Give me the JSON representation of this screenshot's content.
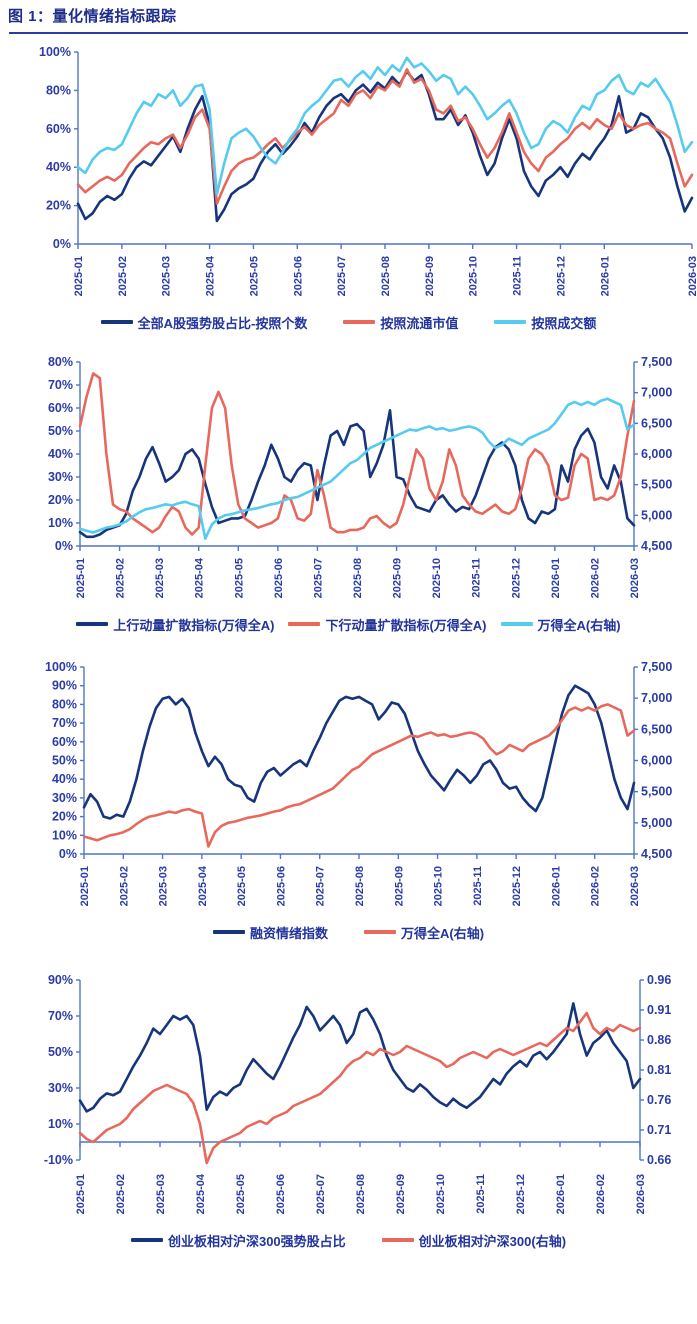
{
  "title": "图 1：量化情绪指标跟踪",
  "colors": {
    "navy": "#17357C",
    "red": "#E8685C",
    "sky": "#55CBEF",
    "axis": "#4F74C8",
    "tick_text": "#2B3CA8",
    "title_text": "#1F2E8C",
    "rule": "#2B3FA0"
  },
  "chart_data": [
    {
      "type": "line",
      "name": "全部A股强势股占比",
      "x_labels": [
        "2025-01",
        "2025-02",
        "2025-03",
        "2025-04",
        "2025-05",
        "2025-06",
        "2025-07",
        "2025-08",
        "2025-09",
        "2025-10",
        "2025-11",
        "2025-12",
        "2026-01",
        "2026-03"
      ],
      "left_axis": {
        "min": 0,
        "max": 100,
        "tick_labels": [
          "100%",
          "80%",
          "60%",
          "40%",
          "20%",
          "0%"
        ]
      },
      "right_axis": null,
      "x_axis_at_value": null,
      "series": [
        {
          "name": "全部A股强势股占比-按照个数",
          "color_key": "navy",
          "axis": "left",
          "values": [
            21,
            13,
            16,
            22,
            25,
            23,
            26,
            34,
            40,
            43,
            41,
            46,
            51,
            56,
            48,
            60,
            70,
            77,
            62,
            12,
            18,
            26,
            29,
            31,
            34,
            42,
            48,
            52,
            47,
            51,
            56,
            63,
            58,
            66,
            72,
            76,
            78,
            74,
            80,
            83,
            79,
            84,
            81,
            87,
            83,
            90,
            85,
            88,
            78,
            65,
            65,
            70,
            62,
            67,
            58,
            46,
            36,
            42,
            55,
            65,
            55,
            38,
            30,
            25,
            33,
            36,
            40,
            35,
            42,
            47,
            44,
            50,
            55,
            62,
            77,
            58,
            60,
            68,
            66,
            60,
            55,
            45,
            30,
            17,
            24
          ]
        },
        {
          "name": "按照流通市值",
          "color_key": "red",
          "axis": "left",
          "values": [
            31,
            27,
            30,
            33,
            35,
            33,
            36,
            42,
            46,
            50,
            53,
            52,
            55,
            57,
            50,
            57,
            66,
            70,
            60,
            21,
            30,
            38,
            42,
            44,
            45,
            48,
            52,
            55,
            50,
            54,
            58,
            61,
            57,
            62,
            65,
            68,
            75,
            72,
            78,
            80,
            76,
            82,
            80,
            85,
            82,
            91,
            84,
            86,
            80,
            70,
            68,
            72,
            64,
            66,
            60,
            52,
            45,
            50,
            58,
            68,
            58,
            48,
            42,
            38,
            45,
            48,
            52,
            55,
            60,
            63,
            60,
            65,
            62,
            60,
            68,
            62,
            60,
            62,
            63,
            60,
            58,
            55,
            42,
            30,
            36
          ]
        },
        {
          "name": "按照成交额",
          "color_key": "sky",
          "axis": "left",
          "values": [
            40,
            37,
            44,
            48,
            50,
            49,
            52,
            60,
            68,
            74,
            72,
            78,
            76,
            80,
            72,
            76,
            82,
            83,
            70,
            26,
            42,
            55,
            58,
            60,
            56,
            50,
            45,
            42,
            48,
            55,
            60,
            68,
            72,
            75,
            80,
            85,
            86,
            82,
            87,
            90,
            86,
            92,
            88,
            93,
            90,
            97,
            92,
            94,
            90,
            85,
            88,
            86,
            78,
            82,
            78,
            72,
            65,
            68,
            72,
            75,
            68,
            58,
            50,
            52,
            60,
            64,
            62,
            58,
            66,
            72,
            70,
            78,
            80,
            85,
            88,
            80,
            78,
            84,
            82,
            86,
            80,
            74,
            62,
            48,
            53
          ]
        }
      ]
    },
    {
      "type": "line",
      "name": "动量扩散指标",
      "x_labels": [
        "2025-01",
        "2025-02",
        "2025-03",
        "2025-04",
        "2025-05",
        "2025-06",
        "2025-07",
        "2025-08",
        "2025-09",
        "2025-10",
        "2025-11",
        "2025-12",
        "2026-01",
        "2026-02",
        "2026-03"
      ],
      "left_axis": {
        "min": 0,
        "max": 80,
        "tick_labels": [
          "80%",
          "70%",
          "60%",
          "50%",
          "40%",
          "30%",
          "20%",
          "10%",
          "0%"
        ]
      },
      "right_axis": {
        "min": 4500,
        "max": 7500,
        "tick_labels": [
          "7,500",
          "7,000",
          "6,500",
          "6,000",
          "5,500",
          "5,000",
          "4,500"
        ]
      },
      "x_axis_at_value": null,
      "series": [
        {
          "name": "上行动量扩散指标(万得全A)",
          "color_key": "navy",
          "axis": "left",
          "values": [
            6,
            4,
            4,
            5,
            7,
            8,
            9,
            14,
            24,
            30,
            38,
            43,
            36,
            28,
            30,
            33,
            40,
            42,
            38,
            27,
            17,
            10,
            11,
            12,
            12,
            13,
            20,
            28,
            35,
            44,
            38,
            30,
            28,
            33,
            36,
            35,
            20,
            35,
            48,
            50,
            44,
            52,
            53,
            50,
            30,
            36,
            44,
            59,
            30,
            29,
            22,
            17,
            16,
            15,
            20,
            22,
            18,
            15,
            17,
            16,
            22,
            30,
            38,
            43,
            45,
            42,
            35,
            20,
            12,
            10,
            15,
            14,
            16,
            35,
            28,
            42,
            48,
            51,
            45,
            30,
            25,
            35,
            28,
            12,
            9
          ]
        },
        {
          "name": "下行动量扩散指标(万得全A)",
          "color_key": "red",
          "axis": "left",
          "values": [
            52,
            65,
            75,
            73,
            40,
            18,
            16,
            15,
            12,
            10,
            8,
            6,
            8,
            13,
            17,
            15,
            8,
            5,
            8,
            35,
            60,
            67,
            60,
            35,
            18,
            12,
            10,
            8,
            9,
            10,
            12,
            22,
            20,
            12,
            11,
            14,
            33,
            22,
            8,
            6,
            6,
            7,
            7,
            8,
            12,
            13,
            10,
            8,
            10,
            18,
            30,
            42,
            38,
            25,
            20,
            28,
            42,
            35,
            22,
            18,
            15,
            14,
            16,
            18,
            15,
            14,
            16,
            25,
            38,
            42,
            40,
            35,
            22,
            20,
            21,
            35,
            40,
            38,
            20,
            21,
            20,
            22,
            30,
            48,
            63
          ]
        },
        {
          "name": "万得全A(右轴)",
          "color_key": "sky",
          "axis": "right",
          "values": [
            4780,
            4750,
            4720,
            4760,
            4800,
            4820,
            4850,
            4900,
            4980,
            5050,
            5100,
            5120,
            5150,
            5180,
            5160,
            5200,
            5220,
            5180,
            5150,
            4620,
            4850,
            4950,
            5000,
            5020,
            5050,
            5080,
            5100,
            5120,
            5150,
            5180,
            5200,
            5250,
            5280,
            5300,
            5350,
            5400,
            5450,
            5500,
            5550,
            5650,
            5750,
            5850,
            5900,
            6000,
            6100,
            6150,
            6200,
            6250,
            6300,
            6350,
            6400,
            6380,
            6420,
            6450,
            6400,
            6420,
            6380,
            6400,
            6430,
            6450,
            6420,
            6350,
            6200,
            6100,
            6150,
            6250,
            6200,
            6150,
            6250,
            6300,
            6350,
            6400,
            6500,
            6650,
            6800,
            6850,
            6800,
            6850,
            6800,
            6870,
            6900,
            6850,
            6800,
            6400,
            6480
          ]
        }
      ]
    },
    {
      "type": "line",
      "name": "融资情绪指数",
      "x_labels": [
        "2025-01",
        "2025-02",
        "2025-03",
        "2025-04",
        "2025-05",
        "2025-06",
        "2025-07",
        "2025-08",
        "2025-09",
        "2025-10",
        "2025-11",
        "2025-12",
        "2026-01",
        "2026-02",
        "2026-03"
      ],
      "left_axis": {
        "min": 0,
        "max": 100,
        "tick_labels": [
          "100%",
          "90%",
          "80%",
          "70%",
          "60%",
          "50%",
          "40%",
          "30%",
          "20%",
          "10%",
          "0%"
        ]
      },
      "right_axis": {
        "min": 4500,
        "max": 7500,
        "tick_labels": [
          "7,500",
          "7,000",
          "6,500",
          "6,000",
          "5,500",
          "5,000",
          "4,500"
        ]
      },
      "x_axis_at_value": null,
      "series": [
        {
          "name": "融资情绪指数",
          "color_key": "navy",
          "axis": "left",
          "values": [
            25,
            32,
            28,
            20,
            19,
            21,
            20,
            28,
            40,
            55,
            68,
            78,
            83,
            84,
            80,
            83,
            78,
            65,
            55,
            47,
            52,
            48,
            40,
            37,
            36,
            30,
            28,
            38,
            44,
            46,
            42,
            45,
            48,
            50,
            47,
            55,
            62,
            70,
            76,
            82,
            84,
            83,
            84,
            82,
            80,
            72,
            76,
            81,
            80,
            75,
            65,
            55,
            48,
            42,
            38,
            34,
            40,
            45,
            42,
            38,
            42,
            48,
            50,
            45,
            38,
            35,
            36,
            30,
            26,
            23,
            30,
            45,
            60,
            75,
            85,
            90,
            88,
            86,
            80,
            70,
            55,
            40,
            30,
            24,
            38
          ]
        },
        {
          "name": "万得全A(右轴)",
          "color_key": "red",
          "axis": "right",
          "values": [
            4780,
            4750,
            4720,
            4760,
            4800,
            4820,
            4850,
            4900,
            4980,
            5050,
            5100,
            5120,
            5150,
            5180,
            5160,
            5200,
            5220,
            5180,
            5150,
            4620,
            4850,
            4950,
            5000,
            5020,
            5050,
            5080,
            5100,
            5120,
            5150,
            5180,
            5200,
            5250,
            5280,
            5300,
            5350,
            5400,
            5450,
            5500,
            5550,
            5650,
            5750,
            5850,
            5900,
            6000,
            6100,
            6150,
            6200,
            6250,
            6300,
            6350,
            6400,
            6380,
            6420,
            6450,
            6400,
            6420,
            6380,
            6400,
            6430,
            6450,
            6420,
            6350,
            6200,
            6100,
            6150,
            6250,
            6200,
            6150,
            6250,
            6300,
            6350,
            6400,
            6500,
            6650,
            6800,
            6850,
            6800,
            6850,
            6800,
            6870,
            6900,
            6850,
            6800,
            6400,
            6480
          ]
        }
      ]
    },
    {
      "type": "line",
      "name": "创业板相对沪深300",
      "x_labels": [
        "2025-01",
        "2025-02",
        "2025-03",
        "2025-04",
        "2025-05",
        "2025-06",
        "2025-07",
        "2025-08",
        "2025-09",
        "2025-10",
        "2025-11",
        "2025-12",
        "2026-01",
        "2026-02",
        "2026-03"
      ],
      "left_axis": {
        "min": -10,
        "max": 90,
        "tick_labels": [
          "90%",
          "70%",
          "50%",
          "30%",
          "10%",
          "-10%"
        ]
      },
      "right_axis": {
        "min": 0.66,
        "max": 0.96,
        "tick_labels": [
          "0.96",
          "0.91",
          "0.86",
          "0.81",
          "0.76",
          "0.71",
          "0.66"
        ]
      },
      "x_axis_at_value": 0,
      "series": [
        {
          "name": "创业板相对沪深300强势股占比",
          "color_key": "navy",
          "axis": "left",
          "values": [
            23,
            17,
            19,
            24,
            27,
            26,
            28,
            35,
            42,
            48,
            55,
            63,
            60,
            65,
            70,
            68,
            70,
            65,
            48,
            18,
            25,
            28,
            26,
            30,
            32,
            40,
            46,
            42,
            38,
            35,
            42,
            50,
            58,
            65,
            75,
            70,
            62,
            66,
            70,
            65,
            55,
            60,
            72,
            74,
            68,
            60,
            48,
            40,
            35,
            30,
            28,
            32,
            29,
            25,
            22,
            20,
            24,
            21,
            19,
            22,
            25,
            30,
            35,
            32,
            38,
            42,
            45,
            42,
            48,
            50,
            46,
            50,
            55,
            60,
            77,
            60,
            48,
            55,
            58,
            62,
            55,
            50,
            45,
            30,
            35
          ]
        },
        {
          "name": "创业板相对沪深300(右轴)",
          "color_key": "red",
          "axis": "right",
          "values": [
            0.705,
            0.695,
            0.69,
            0.7,
            0.71,
            0.715,
            0.72,
            0.73,
            0.745,
            0.755,
            0.765,
            0.775,
            0.78,
            0.785,
            0.78,
            0.775,
            0.77,
            0.755,
            0.72,
            0.655,
            0.68,
            0.69,
            0.695,
            0.7,
            0.705,
            0.715,
            0.72,
            0.725,
            0.72,
            0.73,
            0.735,
            0.74,
            0.75,
            0.755,
            0.76,
            0.765,
            0.77,
            0.78,
            0.79,
            0.8,
            0.815,
            0.825,
            0.83,
            0.84,
            0.835,
            0.845,
            0.84,
            0.835,
            0.84,
            0.85,
            0.845,
            0.84,
            0.835,
            0.83,
            0.825,
            0.815,
            0.82,
            0.83,
            0.835,
            0.84,
            0.835,
            0.83,
            0.84,
            0.845,
            0.84,
            0.835,
            0.84,
            0.845,
            0.85,
            0.855,
            0.85,
            0.86,
            0.87,
            0.88,
            0.875,
            0.89,
            0.905,
            0.88,
            0.87,
            0.88,
            0.875,
            0.885,
            0.88,
            0.875,
            0.88
          ]
        }
      ]
    }
  ]
}
